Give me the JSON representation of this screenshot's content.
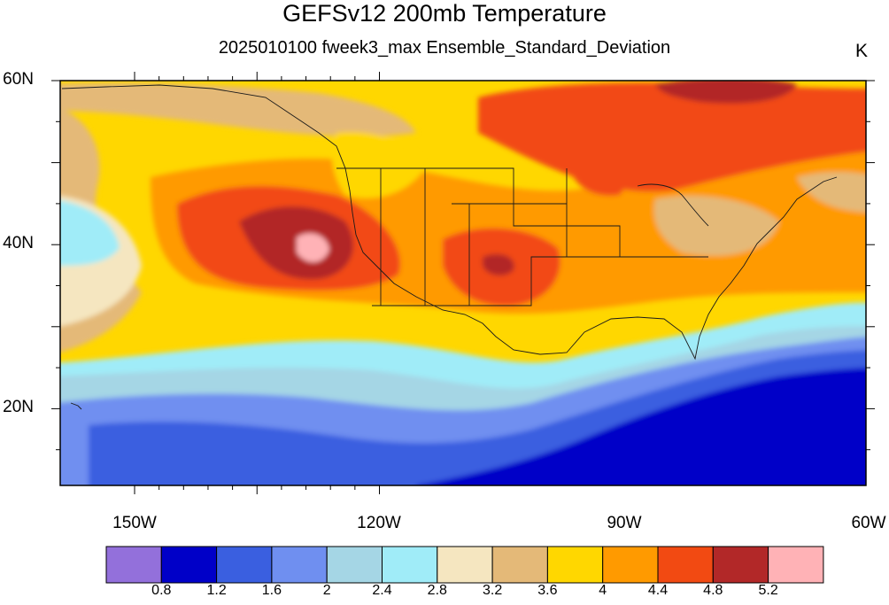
{
  "title": "GEFSv12 200mb Temperature",
  "subtitle": "2025010100 fweek3_max Ensemble_Standard_Deviation",
  "units": "K",
  "lat_labels": [
    "60N",
    "40N",
    "20N"
  ],
  "lon_labels": [
    "150W",
    "120W",
    "90W",
    "60W"
  ],
  "colorbar": {
    "colors": [
      "#9370db",
      "#0000c8",
      "#3a5fe0",
      "#6f8ff0",
      "#a5d6e5",
      "#a0ecf8",
      "#f5e6c0",
      "#e4b978",
      "#ffd700",
      "#ff9a00",
      "#f24a12",
      "#b22828",
      "#ffb2b6"
    ],
    "labels": [
      "0.8",
      "1.2",
      "1.6",
      "2",
      "2.4",
      "2.8",
      "3.2",
      "3.6",
      "4",
      "4.4",
      "4.8",
      "5.2"
    ]
  }
}
